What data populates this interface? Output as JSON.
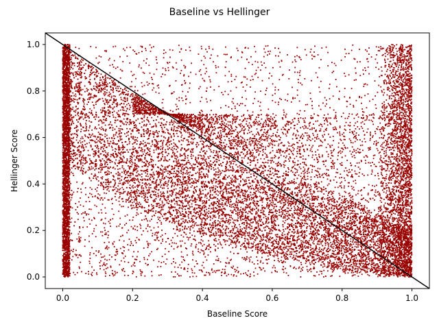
{
  "chart_data": {
    "type": "scatter",
    "title": "Baseline vs Hellinger",
    "xlabel": "Baseline Score",
    "ylabel": "Hellinger Score",
    "xlim": [
      -0.05,
      1.05
    ],
    "ylim": [
      -0.05,
      1.05
    ],
    "xticks": [
      "0.0",
      "0.2",
      "0.4",
      "0.6",
      "0.8",
      "1.0"
    ],
    "yticks": [
      "0.0",
      "0.2",
      "0.4",
      "0.6",
      "0.8",
      "1.0"
    ],
    "grid": false,
    "point_color": "#990000",
    "line_color": "#000000",
    "reference_line": {
      "x": [
        -0.05,
        1.05
      ],
      "y": [
        1.05,
        -0.05
      ]
    },
    "structure": {
      "upper_envelope": {
        "x": [
          0.0,
          0.2,
          0.4,
          0.6,
          0.8,
          1.0
        ],
        "y": [
          1.0,
          0.79,
          0.62,
          0.49,
          0.35,
          0.2
        ]
      },
      "lower_envelope": {
        "x": [
          0.0,
          0.2,
          0.4,
          0.6,
          0.8,
          1.0
        ],
        "y": [
          0.5,
          0.3,
          0.18,
          0.09,
          0.03,
          0.0
        ]
      },
      "secondary_band": {
        "x": [
          0.0,
          0.2,
          0.4,
          0.6,
          0.8,
          1.0
        ],
        "y": [
          0.6,
          0.55,
          0.45,
          0.38,
          0.3,
          0.2
        ]
      },
      "upper_plateau_y": 0.7,
      "dense_edge_columns_x": [
        0.0,
        1.0
      ]
    }
  }
}
